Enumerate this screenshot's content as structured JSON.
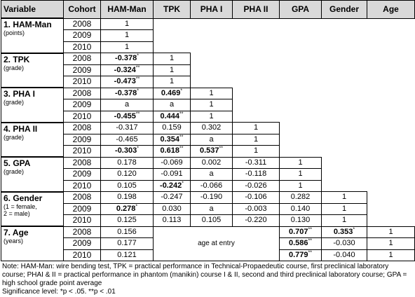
{
  "table": {
    "columns": [
      "Variable",
      "Cohort",
      "HAM-Man",
      "TPK",
      "PHA I",
      "PHA II",
      "GPA",
      "Gender",
      "Age"
    ],
    "groups": [
      {
        "label": "1. HAM-Man",
        "sublabel": [
          "(points)"
        ],
        "rows": [
          {
            "cohort": "2008",
            "cells": [
              "1"
            ]
          },
          {
            "cohort": "2009",
            "cells": [
              "1"
            ]
          },
          {
            "cohort": "2010",
            "cells": [
              "1"
            ]
          }
        ]
      },
      {
        "label": "2. TPK",
        "sublabel": [
          "(grade)"
        ],
        "rows": [
          {
            "cohort": "2008",
            "cells": [
              {
                "text": "-0.378",
                "sig": "*",
                "bold": true
              },
              "1"
            ]
          },
          {
            "cohort": "2009",
            "cells": [
              {
                "text": "-0.324",
                "sig": "**",
                "bold": true
              },
              "1"
            ]
          },
          {
            "cohort": "2010",
            "cells": [
              {
                "text": "-0.473",
                "sig": "**",
                "bold": true
              },
              "1"
            ]
          }
        ]
      },
      {
        "label": "3. PHA I",
        "sublabel": [
          "(grade)"
        ],
        "rows": [
          {
            "cohort": "2008",
            "cells": [
              {
                "text": "-0.378",
                "sig": "*",
                "bold": true
              },
              {
                "text": "0.469",
                "sig": "*",
                "bold": true
              },
              "1"
            ]
          },
          {
            "cohort": "2009",
            "cells": [
              "a",
              "a",
              "1"
            ]
          },
          {
            "cohort": "2010",
            "cells": [
              {
                "text": "-0.455",
                "sig": "**",
                "bold": true
              },
              {
                "text": "0.444",
                "sig": "**",
                "bold": true
              },
              "1"
            ]
          }
        ]
      },
      {
        "label": "4. PHA II",
        "sublabel": [
          "(grade)"
        ],
        "rows": [
          {
            "cohort": "2008",
            "cells": [
              "-0.317",
              "0.159",
              "0.302",
              "1"
            ]
          },
          {
            "cohort": "2009",
            "cells": [
              "-0.465",
              {
                "text": "0.354",
                "sig": "**",
                "bold": true
              },
              "a",
              "1"
            ]
          },
          {
            "cohort": "2010",
            "cells": [
              {
                "text": "-0.303",
                "sig": "*",
                "bold": true
              },
              {
                "text": "0.618",
                "sig": "**",
                "bold": true
              },
              {
                "text": "0.537",
                "sig": "**",
                "bold": true
              },
              "1"
            ]
          }
        ]
      },
      {
        "label": "5. GPA",
        "sublabel": [
          "(grade)"
        ],
        "rows": [
          {
            "cohort": "2008",
            "cells": [
              "0.178",
              "-0.069",
              "0.002",
              "-0.311",
              "1"
            ]
          },
          {
            "cohort": "2009",
            "cells": [
              "0.120",
              "-0.091",
              "a",
              "-0.118",
              "1"
            ]
          },
          {
            "cohort": "2010",
            "cells": [
              "0.105",
              {
                "text": "-0.242",
                "sig": "*",
                "bold": true
              },
              "-0.066",
              "-0.026",
              "1"
            ]
          }
        ]
      },
      {
        "label": "6. Gender",
        "sublabel": [
          "(1 = female,",
          "2 = male)"
        ],
        "rows": [
          {
            "cohort": "2008",
            "cells": [
              "0.198",
              "-0.247",
              "-0.190",
              "-0.106",
              "0.282",
              "1"
            ]
          },
          {
            "cohort": "2009",
            "cells": [
              {
                "text": "0.278",
                "sig": "*",
                "bold": true
              },
              "0.030",
              "a",
              "-0.003",
              "0.140",
              "1"
            ]
          },
          {
            "cohort": "2010",
            "cells": [
              "0.125",
              "0.113",
              "0.105",
              "-0.220",
              "0.130",
              "1"
            ]
          }
        ]
      },
      {
        "label": "7. Age",
        "sublabel": [
          "(years)"
        ],
        "span_text": "age at entry",
        "rows": [
          {
            "cohort": "2008",
            "cells": [
              "0.156",
              null,
              null,
              null,
              {
                "text": "0.707",
                "sig": "**",
                "bold": true
              },
              {
                "text": "0.353",
                "sig": "*",
                "bold": true
              },
              "1"
            ]
          },
          {
            "cohort": "2009",
            "cells": [
              "0.177",
              null,
              null,
              null,
              {
                "text": "0.586",
                "sig": "**",
                "bold": true
              },
              "-0.030",
              "1"
            ]
          },
          {
            "cohort": "2010",
            "cells": [
              "0.121",
              null,
              null,
              null,
              {
                "text": "0.779",
                "sig": "**",
                "bold": true
              },
              "-0.040",
              "1"
            ]
          }
        ]
      }
    ]
  },
  "notes": [
    "Note: HAM-Man: wire bending test, TPK = practical performance in Technical-Propaedeutic course, first preclinical laboratory course; PHAI & II = practical performance in phantom (manikin) course I & II, second and third preclinical laboratory course; GPA = high school grade point average",
    "Significance level: *p < .05. **p < .01"
  ]
}
